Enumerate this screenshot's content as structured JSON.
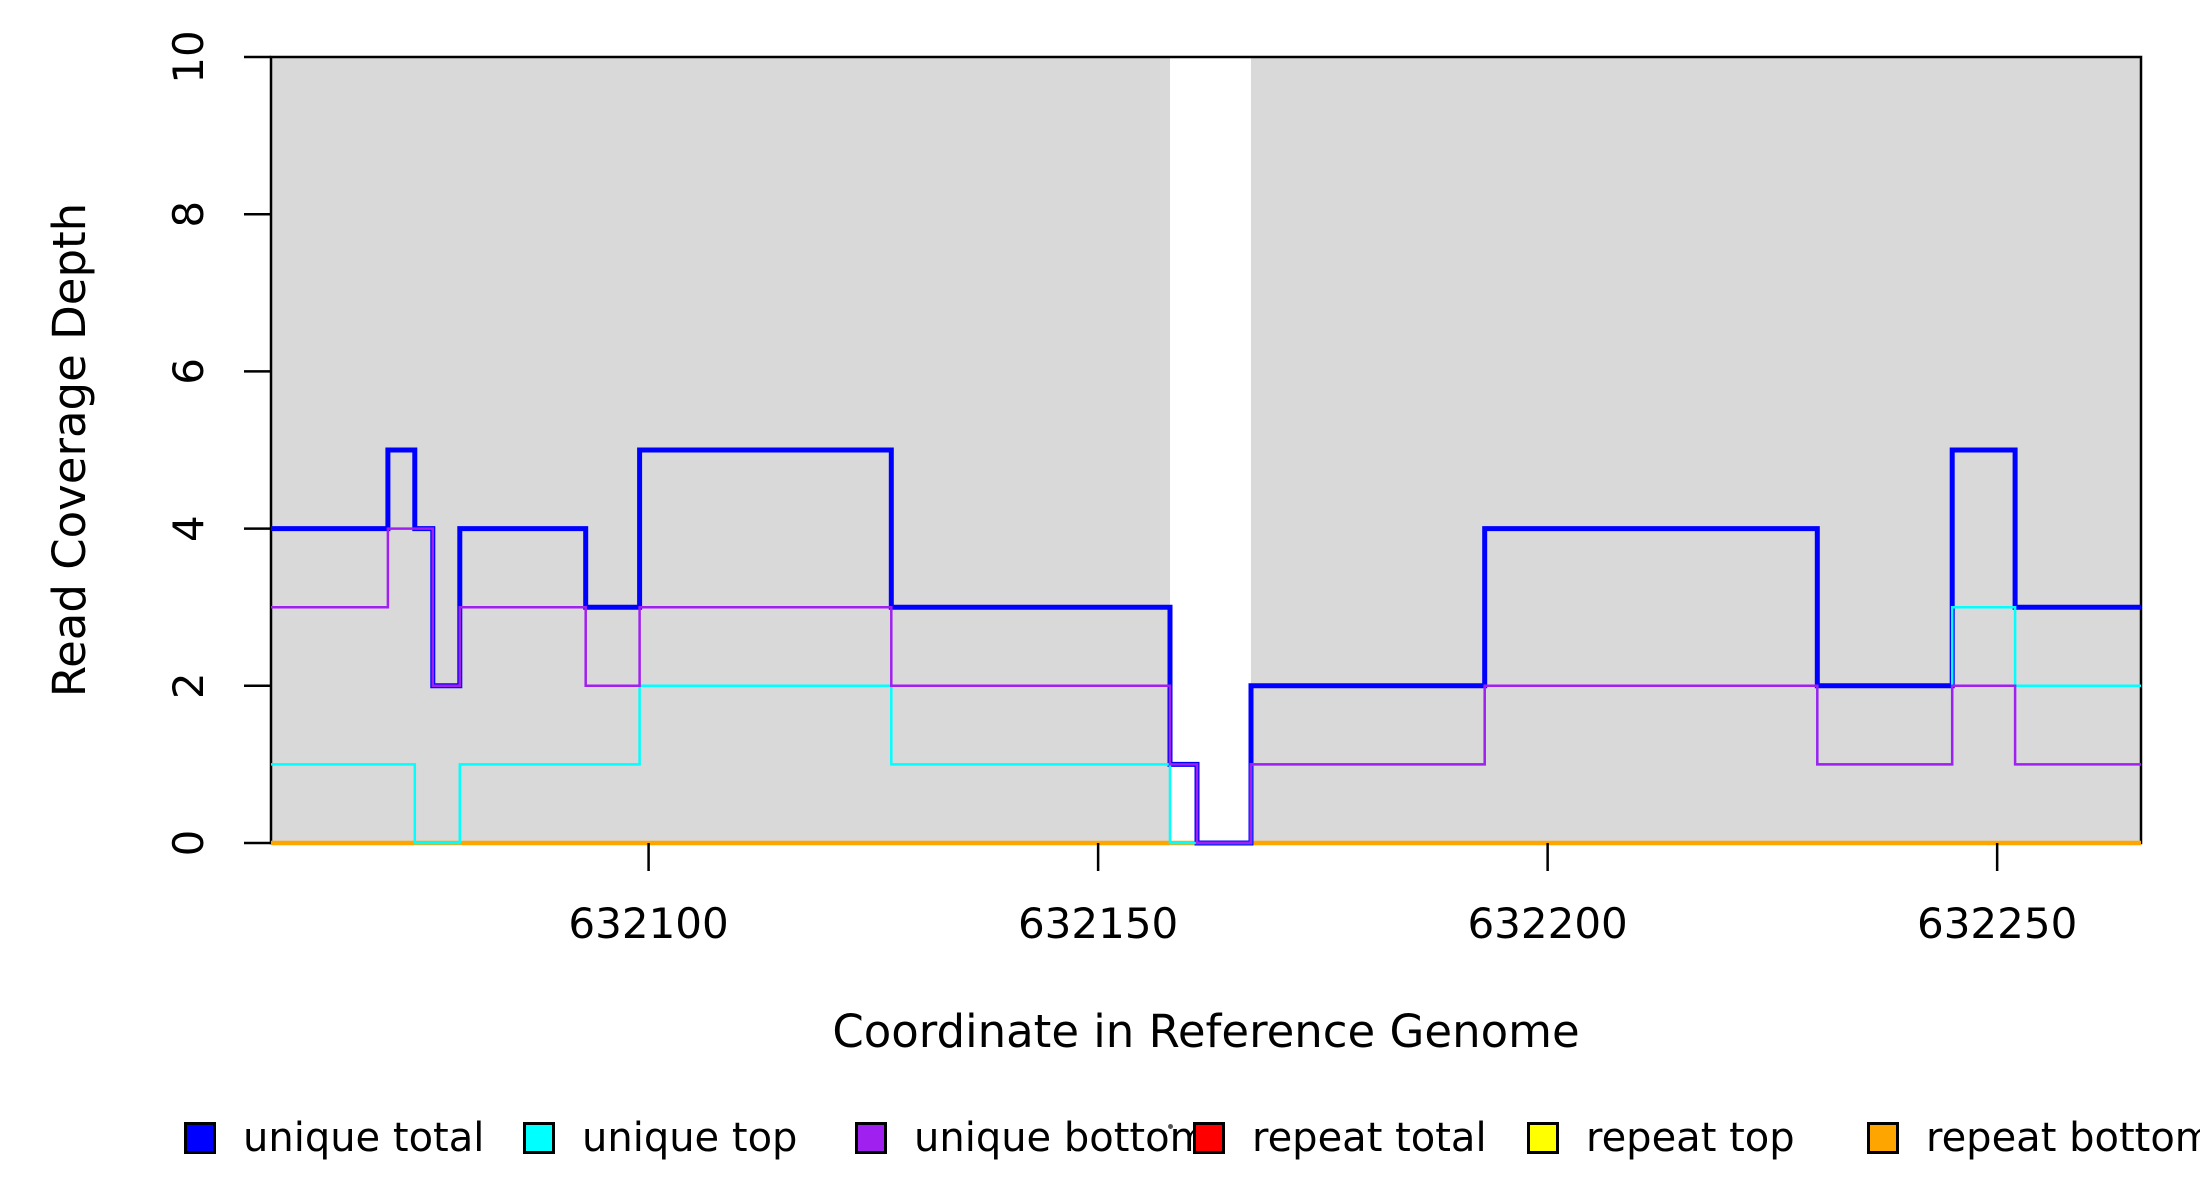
{
  "chart_data": {
    "type": "line",
    "subtype": "step-coverage",
    "title": "",
    "xlabel": "Coordinate in Reference Genome",
    "ylabel": "Read Coverage Depth",
    "xlim": [
      632058,
      632266
    ],
    "ylim": [
      0,
      10
    ],
    "x_ticks": [
      632100,
      632150,
      632200,
      632250
    ],
    "y_ticks": [
      0,
      2,
      4,
      6,
      8,
      10
    ],
    "grid": "off",
    "legend_position": "bottom",
    "shaded_regions": {
      "color": "#D9D9D9",
      "ranges": [
        [
          632058,
          632158
        ],
        [
          632167,
          632266
        ]
      ]
    },
    "series": [
      {
        "name": "repeat total",
        "color": "#FF0000",
        "line_width": 2.5,
        "steps": [
          [
            632058,
            0
          ]
        ],
        "end": 632266
      },
      {
        "name": "repeat top",
        "color": "#FFFF00",
        "line_width": 2.5,
        "steps": [
          [
            632058,
            0
          ]
        ],
        "end": 632266
      },
      {
        "name": "repeat bottom",
        "color": "#FFA500",
        "line_width": 4.5,
        "steps": [
          [
            632058,
            0
          ]
        ],
        "end": 632266
      },
      {
        "name": "unique total",
        "color": "#0000FF",
        "line_width": 5,
        "steps": [
          [
            632058,
            4
          ],
          [
            632071,
            5
          ],
          [
            632074,
            4
          ],
          [
            632076,
            2
          ],
          [
            632079,
            4
          ],
          [
            632093,
            3
          ],
          [
            632099,
            5
          ],
          [
            632127,
            3
          ],
          [
            632158,
            1
          ],
          [
            632161,
            0
          ],
          [
            632167,
            2
          ],
          [
            632193,
            4
          ],
          [
            632230,
            2
          ],
          [
            632245,
            5
          ],
          [
            632252,
            3
          ]
        ],
        "end": 632266
      },
      {
        "name": "unique top",
        "color": "#00FFFF",
        "line_width": 2.5,
        "steps": [
          [
            632058,
            1
          ],
          [
            632074,
            0
          ],
          [
            632079,
            1
          ],
          [
            632099,
            2
          ],
          [
            632127,
            1
          ],
          [
            632158,
            0
          ],
          [
            632167,
            1
          ],
          [
            632193,
            2
          ],
          [
            632230,
            1
          ],
          [
            632245,
            3
          ],
          [
            632252,
            2
          ]
        ],
        "end": 632266
      },
      {
        "name": "unique bottom",
        "color": "#A020F0",
        "line_width": 2.5,
        "steps": [
          [
            632058,
            3
          ],
          [
            632071,
            4
          ],
          [
            632076,
            2
          ],
          [
            632079,
            3
          ],
          [
            632093,
            2
          ],
          [
            632099,
            3
          ],
          [
            632127,
            2
          ],
          [
            632158,
            1
          ],
          [
            632161,
            0
          ],
          [
            632167,
            1
          ],
          [
            632193,
            2
          ],
          [
            632230,
            1
          ],
          [
            632245,
            2
          ],
          [
            632252,
            1
          ]
        ],
        "end": 632266
      }
    ]
  },
  "legend": {
    "items": [
      {
        "label": "unique total",
        "color": "#0000FF"
      },
      {
        "label": "unique top",
        "color": "#00FFFF"
      },
      {
        "label": "unique bottom",
        "color": "#A020F0"
      },
      {
        "label": "repeat total",
        "color": "#FF0000"
      },
      {
        "label": "repeat top",
        "color": "#FFFF00"
      },
      {
        "label": "repeat bottom",
        "color": "#FFA500"
      }
    ]
  }
}
